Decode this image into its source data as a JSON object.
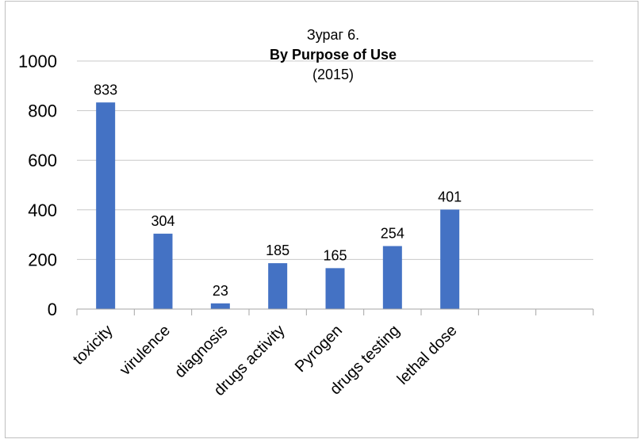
{
  "chart_data": {
    "type": "bar",
    "title_line1": "Зураг 6.",
    "title": "By Purpose of Use",
    "subtitle": "(2015)",
    "categories": [
      "toxicity",
      "virulence",
      "diagnosis",
      "drugs activity",
      "Pyrogen",
      "drugs testing",
      "lethal dose",
      "",
      ""
    ],
    "values": [
      833,
      304,
      23,
      185,
      165,
      254,
      401,
      null,
      null
    ],
    "ylim": [
      0,
      1000
    ],
    "yticks": [
      "0",
      "200",
      "400",
      "600",
      "800",
      "1000"
    ],
    "xlabel": "",
    "ylabel": "",
    "grid": true,
    "legend": "none",
    "bar_color": "#4472c4"
  }
}
